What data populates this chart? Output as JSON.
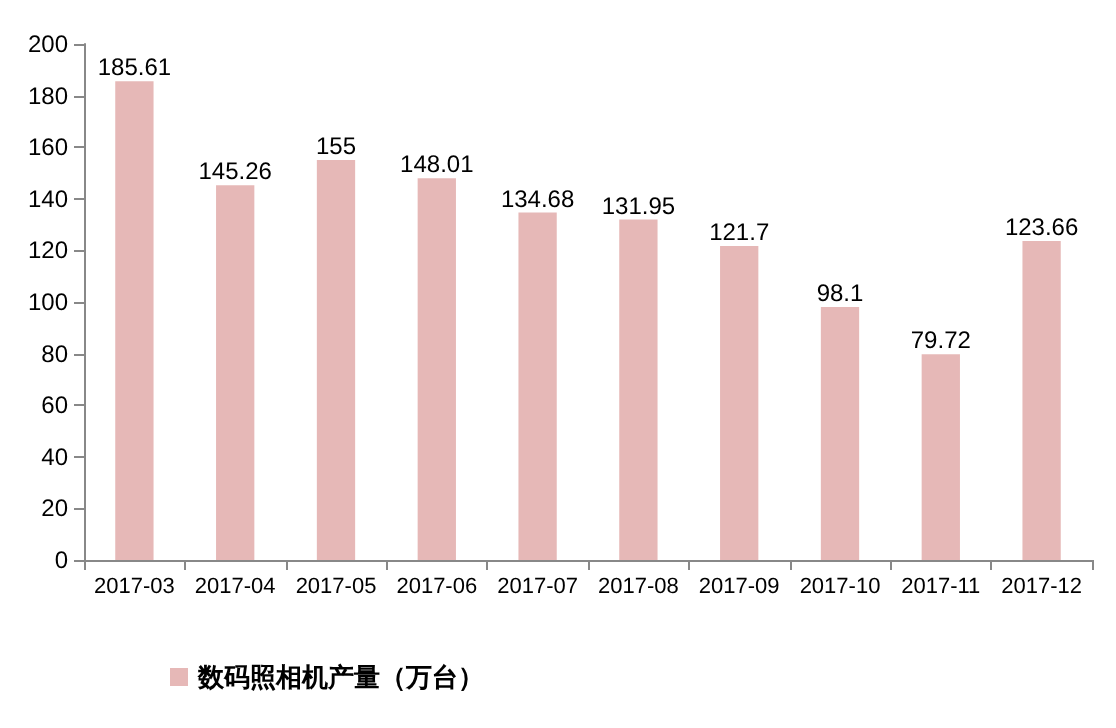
{
  "chart_data": {
    "type": "bar",
    "categories": [
      "2017-03",
      "2017-04",
      "2017-05",
      "2017-06",
      "2017-07",
      "2017-08",
      "2017-09",
      "2017-10",
      "2017-11",
      "2017-12"
    ],
    "series": [
      {
        "name": "数码照相机产量（万台）",
        "color": "#e6b8b7",
        "values": [
          185.61,
          145.26,
          155,
          148.01,
          134.68,
          131.95,
          121.7,
          98.1,
          79.72,
          123.66
        ]
      }
    ],
    "ylim": [
      0,
      200
    ],
    "yticks": [
      0,
      20,
      40,
      60,
      80,
      100,
      120,
      140,
      160,
      180,
      200
    ],
    "data_labels": true,
    "grid": false,
    "legend": "bottom left"
  }
}
